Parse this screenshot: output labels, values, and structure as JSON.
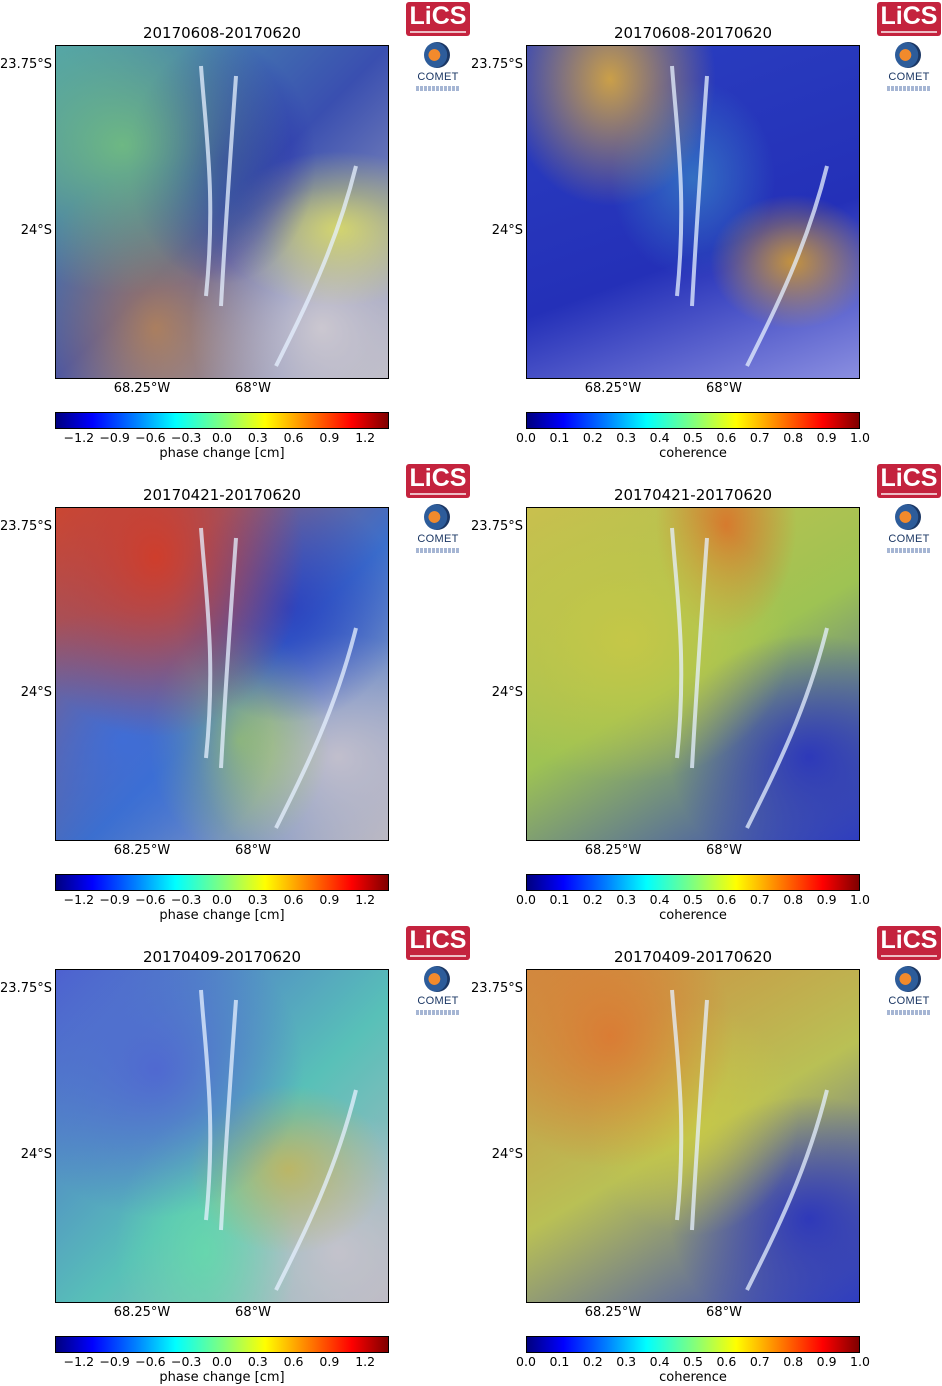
{
  "panels": [
    {
      "title": "20170608-20170620",
      "type": "phase",
      "logo_lics": "LiCS",
      "logo_comet": "COMET"
    },
    {
      "title": "20170608-20170620",
      "type": "coherence",
      "logo_lics": "LiCS",
      "logo_comet": "COMET"
    },
    {
      "title": "20170421-20170620",
      "type": "phase",
      "logo_lics": "LiCS",
      "logo_comet": "COMET"
    },
    {
      "title": "20170421-20170620",
      "type": "coherence",
      "logo_lics": "LiCS",
      "logo_comet": "COMET"
    },
    {
      "title": "20170409-20170620",
      "type": "phase",
      "logo_lics": "LiCS",
      "logo_comet": "COMET"
    },
    {
      "title": "20170409-20170620",
      "type": "coherence",
      "logo_lics": "LiCS",
      "logo_comet": "COMET"
    }
  ],
  "axes": {
    "lat_ticks": [
      "23.75°S",
      "24°S"
    ],
    "lon_ticks": [
      "68.25°W",
      "68°W"
    ]
  },
  "phase_colorbar": {
    "label": "phase change [cm]",
    "ticks": [
      "−1.2",
      "−0.9",
      "−0.6",
      "−0.3",
      "0.0",
      "0.3",
      "0.6",
      "0.9",
      "1.2"
    ],
    "tick_values": [
      -1.2,
      -0.9,
      -0.6,
      -0.3,
      0.0,
      0.3,
      0.6,
      0.9,
      1.2
    ],
    "range": [
      -1.4,
      1.4
    ],
    "colormap": "jet"
  },
  "coherence_colorbar": {
    "label": "coherence",
    "ticks": [
      "0.0",
      "0.1",
      "0.2",
      "0.3",
      "0.4",
      "0.5",
      "0.6",
      "0.7",
      "0.8",
      "0.9",
      "1.0"
    ],
    "tick_values": [
      0.0,
      0.1,
      0.2,
      0.3,
      0.4,
      0.5,
      0.6,
      0.7,
      0.8,
      0.9,
      1.0
    ],
    "range": [
      0.0,
      1.0
    ],
    "colormap": "jet"
  }
}
